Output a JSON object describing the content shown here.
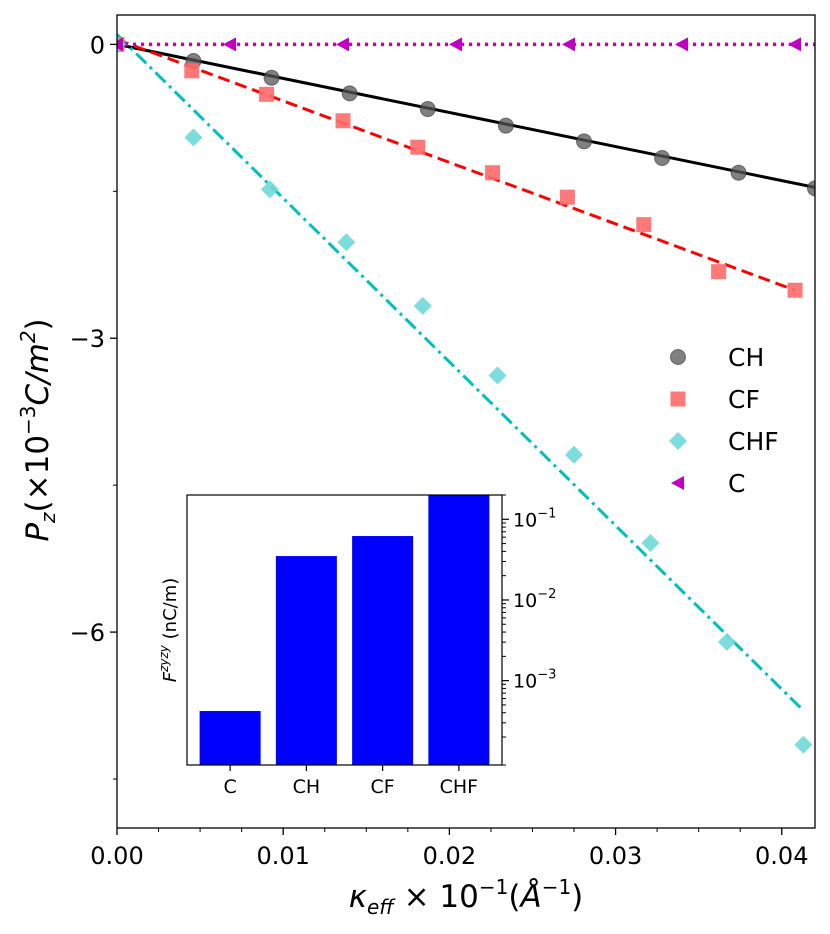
{
  "chart_data": [
    {
      "type": "scatter",
      "xlabel": {
        "main": "κ",
        "sub": "eff",
        "mid": " × 10",
        "sup": "−1",
        "tail1": "(",
        "unit": "Å",
        "unitsup": "−1",
        "tail2": ")"
      },
      "ylabel": {
        "main": "P",
        "sub": "z",
        "mid": "(×10",
        "sup": "−3",
        "tail": "C/m",
        "tailsup": "2",
        "close": ")"
      },
      "xlim": [
        0.0,
        0.042
      ],
      "ylim": [
        -8.0,
        0.3
      ],
      "x_ticks": [
        "0.00",
        "0.01",
        "0.02",
        "0.03",
        "0.04"
      ],
      "x_tick_values": [
        0.0,
        0.01,
        0.02,
        0.03,
        0.04
      ],
      "y_ticks": [
        "0",
        "−3",
        "−6"
      ],
      "y_tick_values": [
        0,
        -3,
        -6
      ],
      "legend_position": "right",
      "series": [
        {
          "name": "CH",
          "marker": "circle",
          "color": "#555555",
          "x": [
            0.0,
            0.0046,
            0.0093,
            0.014,
            0.0187,
            0.0234,
            0.0281,
            0.0328,
            0.0374,
            0.042
          ],
          "y": [
            0.0,
            -0.17,
            -0.34,
            -0.5,
            -0.66,
            -0.83,
            -0.99,
            -1.16,
            -1.31,
            -1.47
          ],
          "fit": {
            "style": "solid",
            "color": "#000000",
            "x": [
              0.0,
              0.042
            ],
            "y": [
              0.0,
              -1.46
            ]
          }
        },
        {
          "name": "CF",
          "marker": "square",
          "color": "#ff6a6a",
          "x": [
            0.0,
            0.0045,
            0.009,
            0.0136,
            0.0181,
            0.0226,
            0.0271,
            0.0317,
            0.0362,
            0.0408
          ],
          "y": [
            0.0,
            -0.27,
            -0.51,
            -0.78,
            -1.05,
            -1.31,
            -1.56,
            -1.84,
            -2.32,
            -2.51
          ],
          "fit": {
            "style": "dashed",
            "color": "#ff0000",
            "x": [
              0.0,
              0.0408
            ],
            "y": [
              0.05,
              -2.51
            ]
          }
        },
        {
          "name": "CHF",
          "marker": "diamond",
          "color": "#6fd8d8",
          "x": [
            0.0,
            0.0046,
            0.0092,
            0.0138,
            0.0184,
            0.0229,
            0.0275,
            0.0321,
            0.0367,
            0.0413
          ],
          "y": [
            0.0,
            -0.95,
            -1.48,
            -2.02,
            -2.67,
            -3.38,
            -4.19,
            -5.09,
            -6.1,
            -7.15
          ],
          "fit": {
            "style": "dashdot",
            "color": "#00bfbf",
            "x": [
              0.0,
              0.0413
            ],
            "y": [
              0.1,
              -6.8
            ]
          }
        },
        {
          "name": "C",
          "marker": "triangle-left",
          "color": "#bf00bf",
          "x": [
            0.0,
            0.0068,
            0.0136,
            0.0204,
            0.0272,
            0.034,
            0.0408
          ],
          "y": [
            0,
            0,
            0,
            0,
            0,
            0,
            0
          ],
          "fit": {
            "style": "dotted",
            "color": "#bf00bf",
            "x": [
              0.0,
              0.042
            ],
            "y": [
              0.0,
              0.0
            ]
          }
        }
      ]
    },
    {
      "type": "bar",
      "yscale": "log",
      "ylabel": {
        "main": "F",
        "sup": "zyzy",
        "tail": " (nC/m)"
      },
      "ylim": [
        9e-05,
        0.2
      ],
      "y_ticks": [
        {
          "base": "10",
          "exp": "−3",
          "value": 0.001
        },
        {
          "base": "10",
          "exp": "−2",
          "value": 0.01
        },
        {
          "base": "10",
          "exp": "−1",
          "value": 0.1
        }
      ],
      "y_axis_side": "right",
      "categories": [
        "C",
        "CH",
        "CF",
        "CHF"
      ],
      "values": [
        0.00042,
        0.035,
        0.062,
        0.2
      ],
      "color": "#0000ff"
    }
  ]
}
